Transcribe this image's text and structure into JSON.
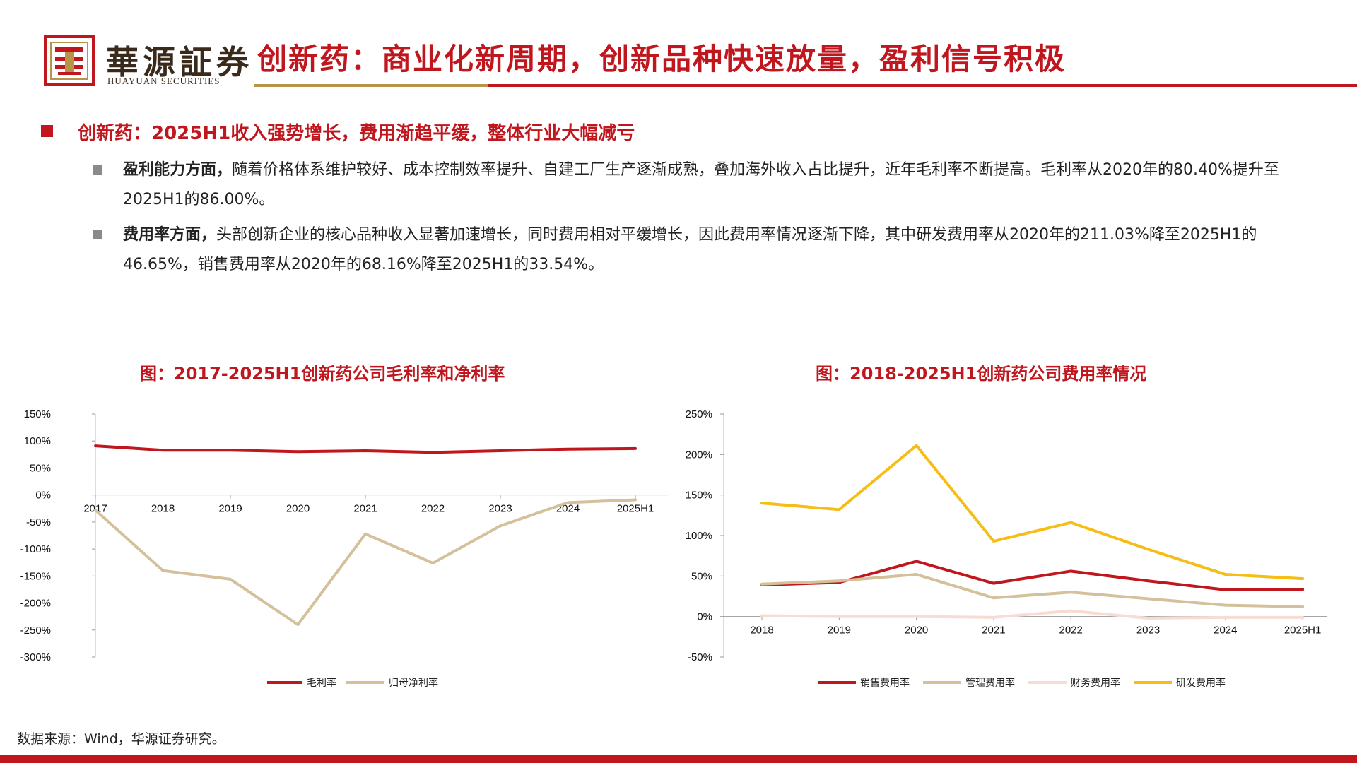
{
  "header": {
    "logo_cn": "華源証券",
    "logo_en": "HUAYUAN SECURITIES",
    "title": "创新药：商业化新周期，创新品种快速放量，盈利信号积极"
  },
  "section": {
    "heading": "创新药：2025H1收入强势增长，费用渐趋平缓，整体行业大幅减亏",
    "points": [
      {
        "lead": "盈利能力方面，",
        "text": "随着价格体系维护较好、成本控制效率提升、自建工厂生产逐渐成熟，叠加海外收入占比提升，近年毛利率不断提高。毛利率从2020年的80.40%提升至2025H1的86.00%。"
      },
      {
        "lead": "费用率方面，",
        "text": "头部创新企业的核心品种收入显著加速增长，同时费用相对平缓增长，因此费用率情况逐渐下降，其中研发费用率从2020年的211.03%降至2025H1的46.65%，销售费用率从2020年的68.16%降至2025H1的33.54%。"
      }
    ]
  },
  "chart_data": [
    {
      "type": "line",
      "title": "图：2017-2025H1创新药公司毛利率和净利率",
      "categories": [
        "2017",
        "2018",
        "2019",
        "2020",
        "2021",
        "2022",
        "2023",
        "2024",
        "2025H1"
      ],
      "y_ticks": [
        "150%",
        "100%",
        "50%",
        "0%",
        "-50%",
        "-100%",
        "-150%",
        "-200%",
        "-250%",
        "-300%"
      ],
      "ylim": [
        -300,
        150
      ],
      "unit": "%",
      "legend_position": "bottom",
      "series": [
        {
          "name": "毛利率",
          "color": "#c0161d",
          "values": [
            91,
            83,
            83,
            80.4,
            82,
            79,
            82,
            85,
            86
          ]
        },
        {
          "name": "归母净利率",
          "color": "#d4c19c",
          "values": [
            -28,
            -140,
            -156,
            -240,
            -72,
            -126,
            -57,
            -14,
            -9
          ]
        }
      ]
    },
    {
      "type": "line",
      "title": "图：2018-2025H1创新药公司费用率情况",
      "categories": [
        "2018",
        "2019",
        "2020",
        "2021",
        "2022",
        "2023",
        "2024",
        "2025H1"
      ],
      "y_ticks": [
        "250%",
        "200%",
        "150%",
        "100%",
        "50%",
        "0%",
        "-50%"
      ],
      "ylim": [
        -50,
        250
      ],
      "unit": "%",
      "legend_position": "bottom",
      "series": [
        {
          "name": "销售费用率",
          "color": "#c0161d",
          "values": [
            39,
            42,
            68.16,
            41,
            56,
            44,
            33,
            33.54
          ]
        },
        {
          "name": "管理费用率",
          "color": "#d4c19c",
          "values": [
            40,
            44,
            52,
            23,
            30,
            22,
            14,
            12
          ]
        },
        {
          "name": "财务费用率",
          "color": "#f6dcd4",
          "values": [
            1,
            0,
            0,
            -1,
            7,
            -2,
            -1,
            -1
          ]
        },
        {
          "name": "研发费用率",
          "color": "#f6bd16",
          "values": [
            140,
            132,
            211.03,
            93,
            116,
            83,
            52,
            46.65
          ]
        }
      ]
    }
  ],
  "footnote": "数据来源：Wind，华源证券研究。"
}
